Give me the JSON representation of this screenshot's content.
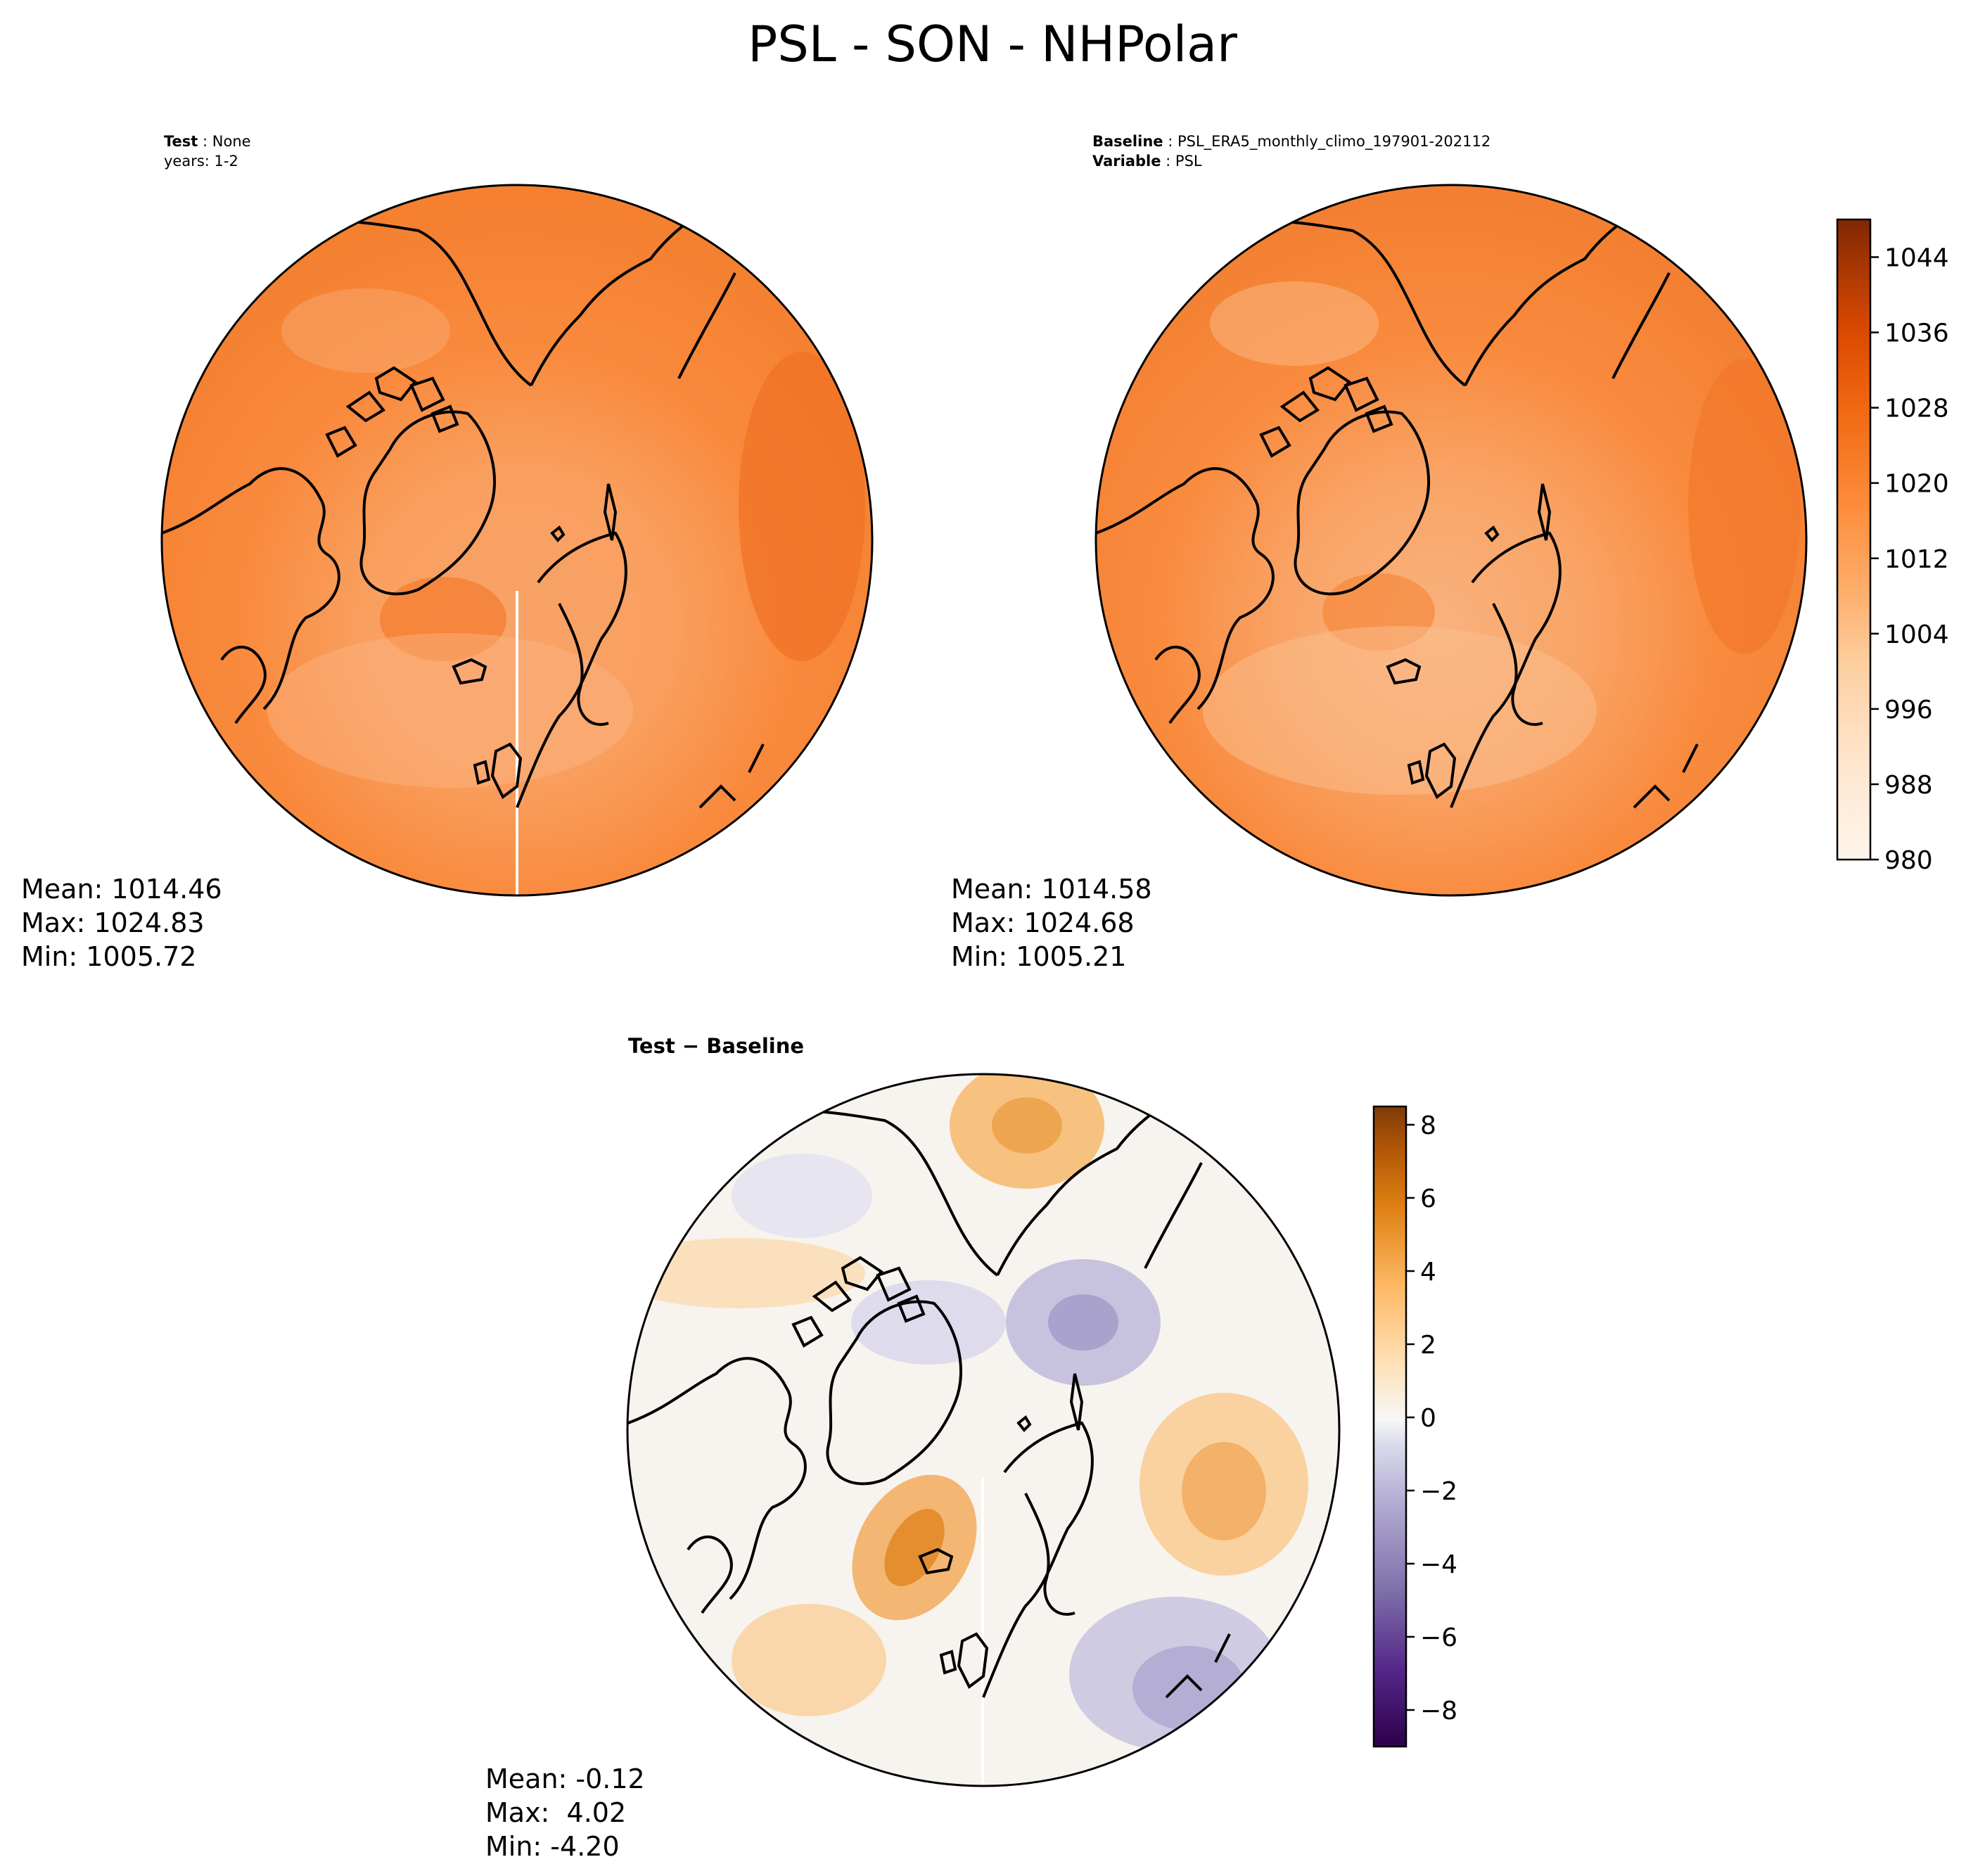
{
  "title": "PSL - SON - NHPolar",
  "panels": {
    "test": {
      "label_key": "Test",
      "label_value": "None",
      "years": "years: 1-2",
      "stats": {
        "mean": "Mean: 1014.46",
        "max": "Max: 1024.83",
        "min": "Min: 1005.72"
      }
    },
    "baseline": {
      "label_key": "Baseline",
      "label_value": "PSL_ERA5_monthly_climo_197901-202112",
      "variable_key": "Variable",
      "variable_value": "PSL",
      "stats": {
        "mean": "Mean: 1014.58",
        "max": "Max: 1024.68",
        "min": "Min: 1005.21"
      }
    },
    "diff": {
      "title_left": "Test",
      "title_op": " − ",
      "title_right": "Baseline",
      "stats": {
        "mean": "Mean: -0.12",
        "max": "Max:  4.02",
        "min": "Min: -4.20"
      }
    }
  },
  "chart_data": [
    {
      "type": "heatmap",
      "name_on_chart": "Test",
      "projection": "north polar stereographic",
      "colormap": "Oranges",
      "colorbar_shared_with": "Baseline",
      "mean": 1014.46,
      "max": 1024.83,
      "min": 1005.72
    },
    {
      "type": "heatmap",
      "name_on_chart": "Baseline",
      "projection": "north polar stereographic",
      "colormap": "Oranges",
      "colorbar": {
        "range": [
          980,
          1048
        ],
        "ticks": [
          980,
          988,
          996,
          1004,
          1012,
          1020,
          1028,
          1036,
          1044
        ],
        "tick_labels": [
          "980",
          "988",
          "996",
          "1004",
          "1012",
          "1020",
          "1028",
          "1036",
          "1044"
        ]
      },
      "mean": 1014.58,
      "max": 1024.68,
      "min": 1005.21
    },
    {
      "type": "heatmap",
      "name_on_chart": "Test − Baseline",
      "projection": "north polar stereographic",
      "colormap": "PuOr_r",
      "colorbar": {
        "range": [
          -9,
          8.5
        ],
        "ticks": [
          -8,
          -6,
          -4,
          -2,
          0,
          2,
          4,
          6,
          8
        ],
        "tick_labels": [
          "−8",
          "−6",
          "−4",
          "−2",
          "0",
          "2",
          "4",
          "6",
          "8"
        ]
      },
      "mean": -0.12,
      "max": 4.02,
      "min": -4.2
    }
  ],
  "colors": {
    "orange_low": "#fff5eb",
    "orange_mid": "#f98a3d",
    "orange_high": "#7f2704",
    "diff_neg": "#2d004b",
    "diff_zero": "#f7f7f7",
    "diff_pos": "#7f3b08"
  }
}
